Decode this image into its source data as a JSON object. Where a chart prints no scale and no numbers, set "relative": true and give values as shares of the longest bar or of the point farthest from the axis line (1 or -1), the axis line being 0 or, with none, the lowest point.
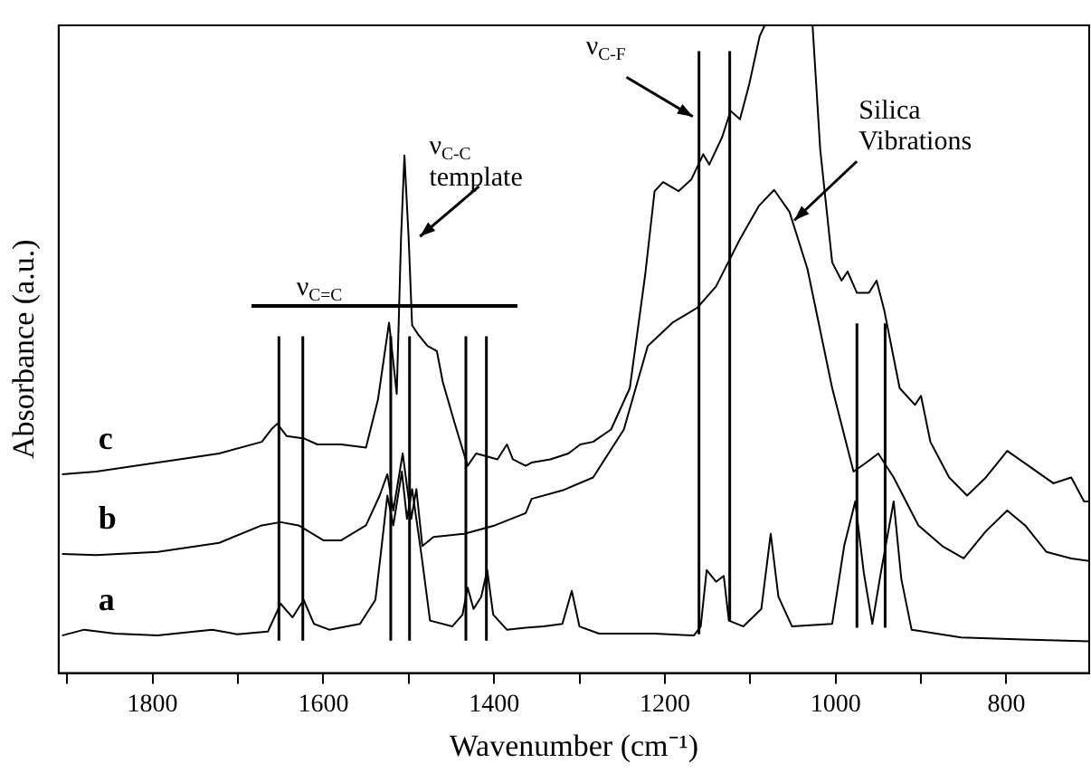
{
  "chart_data": {
    "type": "line",
    "relative": true,
    "xlabel": "Wavenumber (cm⁻¹)",
    "ylabel": "Absorbance (a.u.)",
    "xlim": [
      1910,
      703
    ],
    "xticks": [
      {
        "value": 1900,
        "label": null
      },
      1800,
      {
        "value": 1700,
        "label": null
      },
      1600,
      {
        "value": 1500,
        "label": null
      },
      1400,
      {
        "value": 1300,
        "label": null
      },
      1200,
      {
        "value": 1100,
        "label": null
      },
      1000,
      {
        "value": 900,
        "label": null
      },
      800
    ],
    "legend": false,
    "grid": false,
    "marker": "none",
    "line_style": "solid",
    "series": [
      {
        "name": "a",
        "color": "#000000",
        "x": [
          1906,
          1880,
          1844,
          1794,
          1751,
          1730,
          1701,
          1665,
          1650,
          1636,
          1623,
          1611,
          1593,
          1557,
          1539,
          1532,
          1525,
          1518,
          1508,
          1502,
          1496,
          1485,
          1475,
          1449,
          1437,
          1431,
          1424,
          1415,
          1408,
          1401,
          1385,
          1363,
          1342,
          1320,
          1309,
          1300,
          1277,
          1212,
          1166,
          1158,
          1151,
          1140,
          1131,
          1125,
          1108,
          1087,
          1076,
          1067,
          1051,
          1004,
          990,
          977,
          967,
          957,
          947,
          932,
          923,
          911,
          853,
          781,
          703
        ],
        "values": [
          0.058,
          0.067,
          0.061,
          0.058,
          0.064,
          0.067,
          0.06,
          0.064,
          0.107,
          0.086,
          0.113,
          0.076,
          0.067,
          0.076,
          0.113,
          0.192,
          0.274,
          0.228,
          0.311,
          0.238,
          0.284,
          0.182,
          0.081,
          0.072,
          0.09,
          0.132,
          0.099,
          0.118,
          0.159,
          0.09,
          0.067,
          0.07,
          0.072,
          0.076,
          0.127,
          0.072,
          0.061,
          0.061,
          0.058,
          0.072,
          0.159,
          0.141,
          0.15,
          0.081,
          0.072,
          0.099,
          0.215,
          0.118,
          0.072,
          0.076,
          0.196,
          0.265,
          0.155,
          0.076,
          0.155,
          0.265,
          0.145,
          0.067,
          0.055,
          0.052,
          0.049
        ]
      },
      {
        "name": "b",
        "color": "#000000",
        "x": [
          1906,
          1866,
          1794,
          1722,
          1672,
          1650,
          1629,
          1600,
          1579,
          1550,
          1534,
          1525,
          1518,
          1507,
          1497,
          1491,
          1484,
          1471,
          1435,
          1399,
          1363,
          1356,
          1320,
          1284,
          1248,
          1220,
          1191,
          1162,
          1140,
          1112,
          1090,
          1072,
          1054,
          1033,
          1004,
          979,
          964,
          950,
          932,
          903,
          875,
          850,
          824,
          799,
          778,
          753,
          724,
          703
        ],
        "values": [
          0.184,
          0.182,
          0.187,
          0.201,
          0.228,
          0.233,
          0.228,
          0.205,
          0.205,
          0.228,
          0.274,
          0.307,
          0.251,
          0.339,
          0.238,
          0.284,
          0.196,
          0.21,
          0.215,
          0.228,
          0.247,
          0.269,
          0.282,
          0.302,
          0.376,
          0.505,
          0.541,
          0.564,
          0.597,
          0.67,
          0.721,
          0.746,
          0.712,
          0.624,
          0.44,
          0.311,
          0.325,
          0.339,
          0.302,
          0.228,
          0.196,
          0.177,
          0.219,
          0.251,
          0.228,
          0.187,
          0.177,
          0.173
        ]
      },
      {
        "name": "c",
        "color": "#000000",
        "x": [
          1906,
          1866,
          1794,
          1722,
          1672,
          1661,
          1654,
          1643,
          1622,
          1607,
          1579,
          1550,
          1536,
          1523,
          1514,
          1509,
          1505,
          1500,
          1496,
          1489,
          1478,
          1467,
          1460,
          1446,
          1431,
          1421,
          1396,
          1385,
          1378,
          1363,
          1356,
          1334,
          1313,
          1299,
          1284,
          1263,
          1241,
          1223,
          1212,
          1202,
          1184,
          1169,
          1155,
          1148,
          1133,
          1123,
          1112,
          1101,
          1089,
          1083,
          1055,
          1027,
          1018,
          1004,
          993,
          986,
          975,
          961,
          952,
          943,
          925,
          907,
          900,
          889,
          867,
          846,
          824,
          799,
          774,
          745,
          724,
          709,
          703
        ],
        "values": [
          0.307,
          0.311,
          0.325,
          0.339,
          0.357,
          0.376,
          0.385,
          0.366,
          0.362,
          0.353,
          0.353,
          0.348,
          0.422,
          0.541,
          0.431,
          0.67,
          0.799,
          0.67,
          0.537,
          0.523,
          0.505,
          0.497,
          0.449,
          0.385,
          0.32,
          0.339,
          0.33,
          0.353,
          0.33,
          0.32,
          0.325,
          0.33,
          0.339,
          0.353,
          0.357,
          0.376,
          0.44,
          0.615,
          0.744,
          0.758,
          0.744,
          0.762,
          0.801,
          0.785,
          0.827,
          0.868,
          0.855,
          0.91,
          0.983,
          1.0,
          null,
          1.0,
          0.808,
          0.634,
          0.606,
          0.62,
          0.587,
          0.587,
          0.606,
          0.56,
          0.44,
          0.414,
          0.428,
          0.357,
          0.302,
          0.274,
          0.302,
          0.343,
          0.32,
          0.293,
          0.302,
          0.265,
          0.265
        ]
      }
    ],
    "ref_lines": [
      {
        "axis": "x",
        "value": 1652,
        "color": "#000000"
      },
      {
        "axis": "x",
        "value": 1624,
        "color": "#000000"
      },
      {
        "axis": "x",
        "value": 1521,
        "color": "#000000"
      },
      {
        "axis": "x",
        "value": 1499,
        "color": "#000000"
      },
      {
        "axis": "x",
        "value": 1433,
        "color": "#000000"
      },
      {
        "axis": "x",
        "value": 1409,
        "color": "#000000"
      },
      {
        "axis": "x",
        "value": 1160,
        "color": "#000000"
      },
      {
        "axis": "x",
        "value": 1124,
        "color": "#000000"
      },
      {
        "axis": "x",
        "value": 975,
        "color": "#000000"
      },
      {
        "axis": "x",
        "value": 942,
        "color": "#000000"
      }
    ],
    "annotations": [
      "ν$_{C=C}$",
      "ν$_{C-C}$\ntemplate",
      "ν$_{C-F}$",
      "Silica\nVibrations"
    ]
  }
}
